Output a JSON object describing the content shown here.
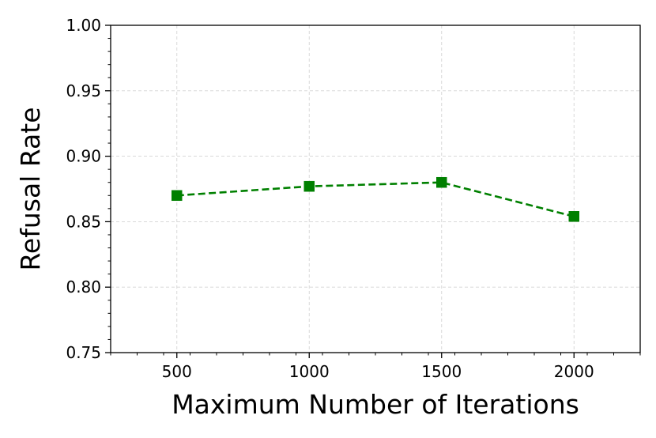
{
  "chart_data": {
    "type": "line",
    "title": "",
    "xlabel": "Maximum Number of Iterations",
    "ylabel": "Refusal Rate",
    "xlim": [
      250,
      2250
    ],
    "ylim": [
      0.75,
      1.0
    ],
    "x_ticks": [
      500,
      1000,
      1500,
      2000
    ],
    "x_tick_labels": [
      "500",
      "1000",
      "1500",
      "2000"
    ],
    "y_ticks": [
      0.75,
      0.8,
      0.85,
      0.9,
      0.95,
      1.0
    ],
    "y_tick_labels": [
      "0.75",
      "0.80",
      "0.85",
      "0.90",
      "0.95",
      "1.00"
    ],
    "grid": true,
    "legend": false,
    "series": [
      {
        "x": [
          500,
          1000,
          1500,
          2000
        ],
        "values": [
          0.87,
          0.877,
          0.88,
          0.854
        ],
        "color": "#008000",
        "line_style": "dashed",
        "marker": "square"
      }
    ]
  }
}
